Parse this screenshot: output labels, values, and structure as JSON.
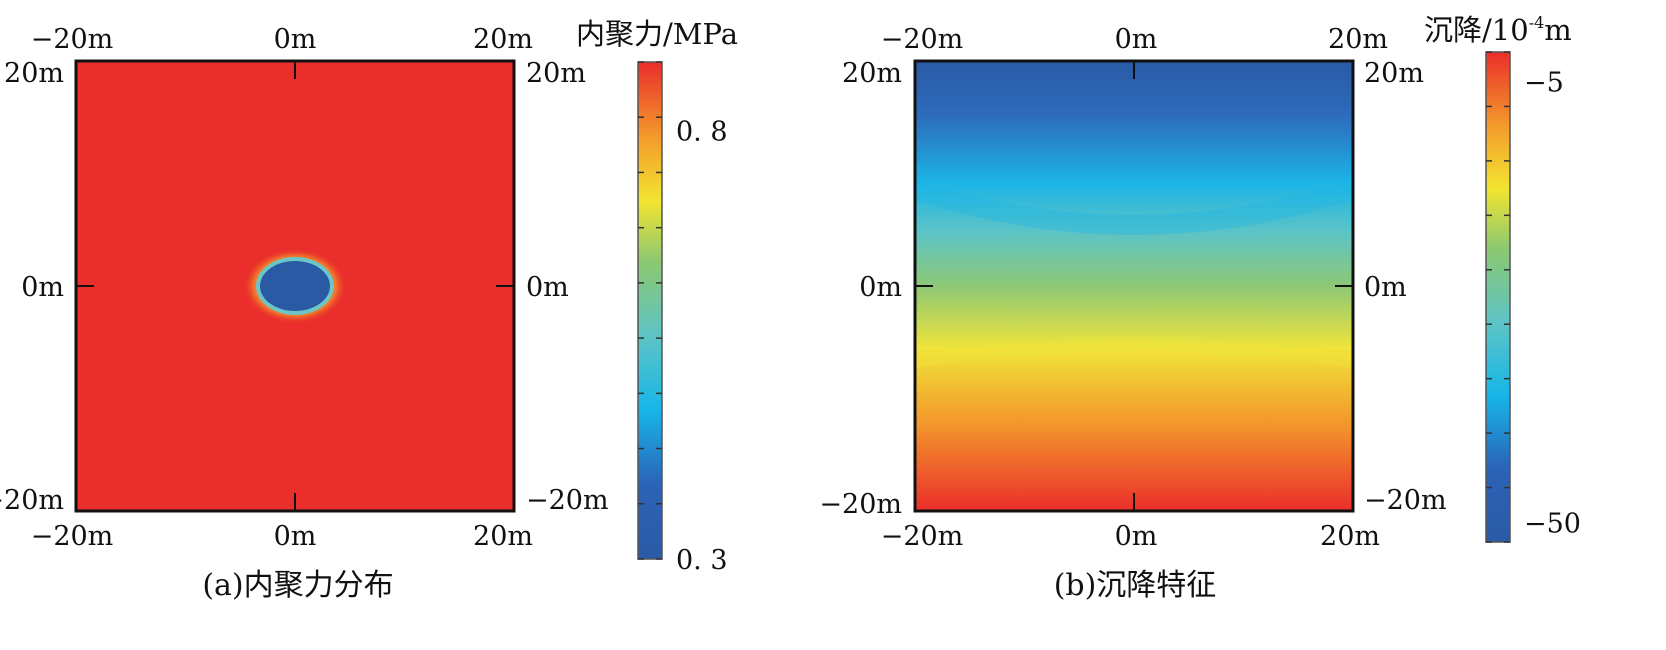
{
  "chart_data": [
    {
      "type": "heatmap",
      "caption": "(a)内聚力分布",
      "colorbar_title": "内聚力/MPa",
      "colorbar_ticks": [
        {
          "value": 0.8,
          "label": "0. 8"
        },
        {
          "value": 0.3,
          "label": "0. 3"
        }
      ],
      "color_range": [
        0.3,
        0.88
      ],
      "x_tick_labels": [
        "−20m",
        "0m",
        "20m"
      ],
      "y_tick_labels": [
        "20m",
        "0m",
        "−20m"
      ],
      "xlim": [
        -20,
        20
      ],
      "ylim": [
        -20,
        20
      ],
      "field": {
        "background_value": 0.88,
        "region": {
          "shape": "ellipse",
          "center_x": 0,
          "center_y": 0,
          "semi_axis_x": 3.5,
          "semi_axis_y": 2.5,
          "value": 0.3
        }
      }
    },
    {
      "type": "heatmap",
      "caption": "(b)沉降特征",
      "colorbar_title": "沉降/10",
      "colorbar_title_superscript": "-4",
      "colorbar_title_suffix": "m",
      "colorbar_ticks": [
        {
          "value": -5,
          "label": "−5"
        },
        {
          "value": -50,
          "label": "−50"
        }
      ],
      "color_range": [
        -52,
        -2
      ],
      "x_tick_labels": [
        "−20m",
        "0m",
        "20m"
      ],
      "y_tick_labels": [
        "20m",
        "0m",
        "−20m"
      ],
      "xlim": [
        -20,
        20
      ],
      "ylim": [
        -20,
        20
      ],
      "field": {
        "gradient": "vertical",
        "stops": [
          {
            "y": 20,
            "value": -50
          },
          {
            "y": 10,
            "value": -38
          },
          {
            "y": 0,
            "value": -25
          },
          {
            "y": -6,
            "value": -18
          },
          {
            "y": -20,
            "value": -3
          }
        ]
      }
    }
  ]
}
